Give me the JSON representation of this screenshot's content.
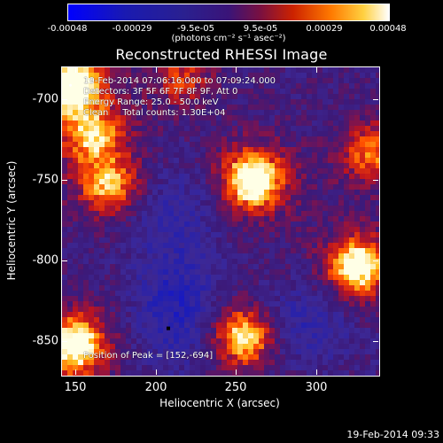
{
  "colorbar": {
    "ticks": [
      "-0.00048",
      "-0.00029",
      "-9.5e-05",
      "9.5e-05",
      "0.00029",
      "0.00048"
    ],
    "unit": "(photons cm⁻² s⁻¹ asec⁻²)",
    "colors": [
      "#0000ff",
      "#1a1aa0",
      "#3a2a8a",
      "#4a2090",
      "#8a1020",
      "#ff3300",
      "#ffaa00",
      "#ffff66",
      "#ffffff"
    ]
  },
  "chart_data": {
    "type": "heatmap",
    "title": "Reconstructed RHESSI Image",
    "xlabel": "Heliocentric X (arcsec)",
    "ylabel": "Heliocentric Y (arcsec)",
    "xlim": [
      147,
      335
    ],
    "ylim": [
      -872,
      -683
    ],
    "xticks": [
      "150",
      "200",
      "250",
      "300"
    ],
    "yticks": [
      "-700",
      "-750",
      "-800",
      "-850"
    ],
    "annotations": {
      "line1": "19-Feb-2014 07:06:16.000 to 07:09:24.000",
      "line2": "Detectors: 3F 5F 6F 7F 8F 9F, Att 0",
      "line3": "Energy Range: 25.0 - 50.0 keV",
      "line4": "Clean     Total counts: 1.30E+04",
      "peak": "Position of Peak = [152,-694]"
    },
    "sources": [
      {
        "x": 152,
        "y": -694,
        "intensity": 1.0
      },
      {
        "x": 260,
        "y": -752,
        "intensity": 0.95
      },
      {
        "x": 322,
        "y": -805,
        "intensity": 0.85
      },
      {
        "x": 155,
        "y": -853,
        "intensity": 0.9
      },
      {
        "x": 255,
        "y": -848,
        "intensity": 0.75
      },
      {
        "x": 175,
        "y": -755,
        "intensity": 0.6
      },
      {
        "x": 165,
        "y": -725,
        "intensity": 0.55
      },
      {
        "x": 330,
        "y": -735,
        "intensity": 0.5
      },
      {
        "x": 218,
        "y": -690,
        "intensity": 0.35
      }
    ]
  },
  "footer": {
    "timestamp": "19-Feb-2014 09:33"
  }
}
